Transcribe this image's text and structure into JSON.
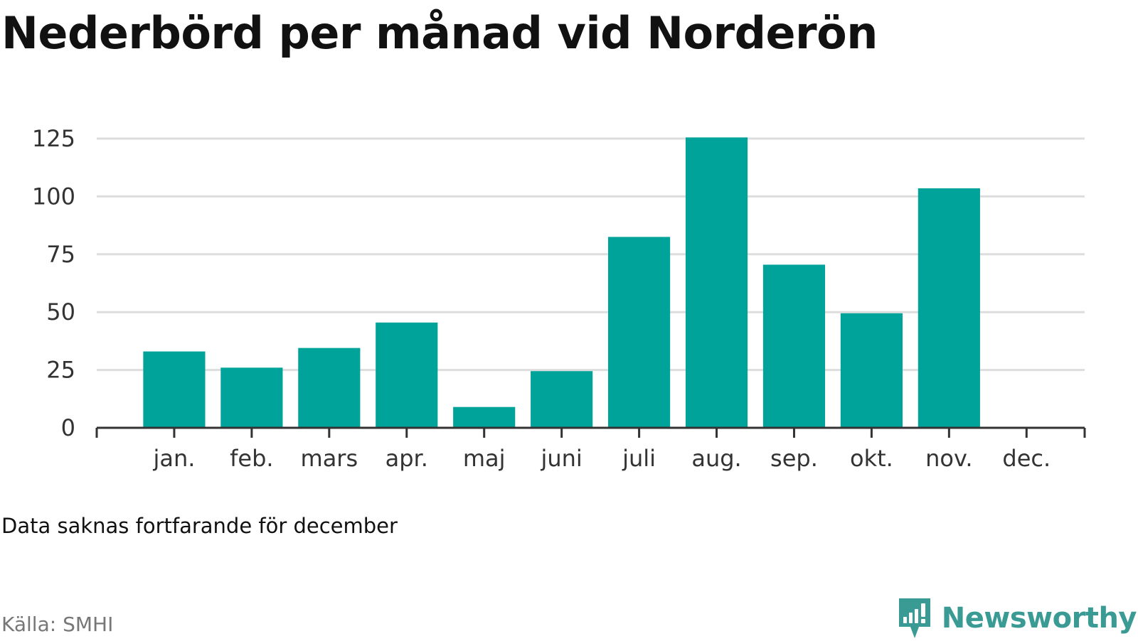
{
  "title": "Nederbörd per månad vid Norderön",
  "note": "Data saknas fortfarande för december",
  "source": "Källa: SMHI",
  "brand": {
    "name": "Newsworthy",
    "icon": "newsworthy-logo-icon",
    "color": "#3a9a94"
  },
  "colors": {
    "bar": "#00a39a",
    "grid": "#dddddd",
    "axis": "#333333"
  },
  "chart_data": {
    "type": "bar",
    "categories": [
      "jan.",
      "feb.",
      "mars",
      "apr.",
      "maj",
      "juni",
      "juli",
      "aug.",
      "sep.",
      "okt.",
      "nov.",
      "dec."
    ],
    "values": [
      33,
      26,
      34.5,
      45.5,
      9,
      24.5,
      82.5,
      125.5,
      70.5,
      49.5,
      103.5,
      null
    ],
    "yticks": [
      0,
      25,
      50,
      75,
      100,
      125
    ],
    "ylim": [
      0,
      125
    ],
    "title": "Nederbörd per månad vid Norderön",
    "xlabel": "",
    "ylabel": "",
    "grid": true,
    "legend": "none"
  }
}
